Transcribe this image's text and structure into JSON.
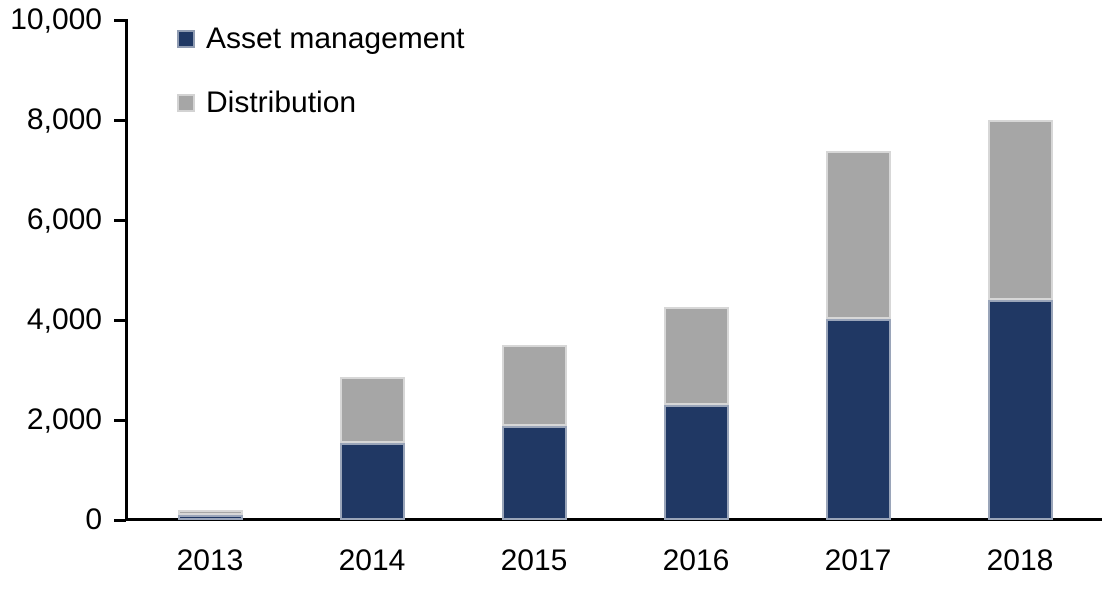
{
  "chart_data": {
    "type": "bar",
    "stacked": true,
    "title": "",
    "categories": [
      "2013",
      "2014",
      "2015",
      "2016",
      "2017",
      "2018"
    ],
    "series": [
      {
        "name": "Asset management",
        "color": "#203864",
        "values": [
          100,
          1540,
          1890,
          2310,
          4030,
          4410
        ]
      },
      {
        "name": "Distribution",
        "color": "#a6a6a6",
        "values": [
          100,
          1320,
          1610,
          1950,
          3350,
          3590
        ]
      }
    ],
    "totals": [
      200,
      2860,
      3500,
      4250,
      7380,
      8000
    ],
    "ylim": [
      0,
      10000
    ],
    "ytick_interval": 2000,
    "ytick_labels": [
      "0",
      "2,000",
      "4,000",
      "6,000",
      "8,000",
      "10,000"
    ],
    "xlabel": "",
    "ylabel": "",
    "grid": false,
    "legend_position": "top-left-inside"
  },
  "colors": {
    "axis": "#000000",
    "text": "#000000",
    "background": "#ffffff",
    "segment_border": "rgba(255,255,255,0.55)"
  }
}
